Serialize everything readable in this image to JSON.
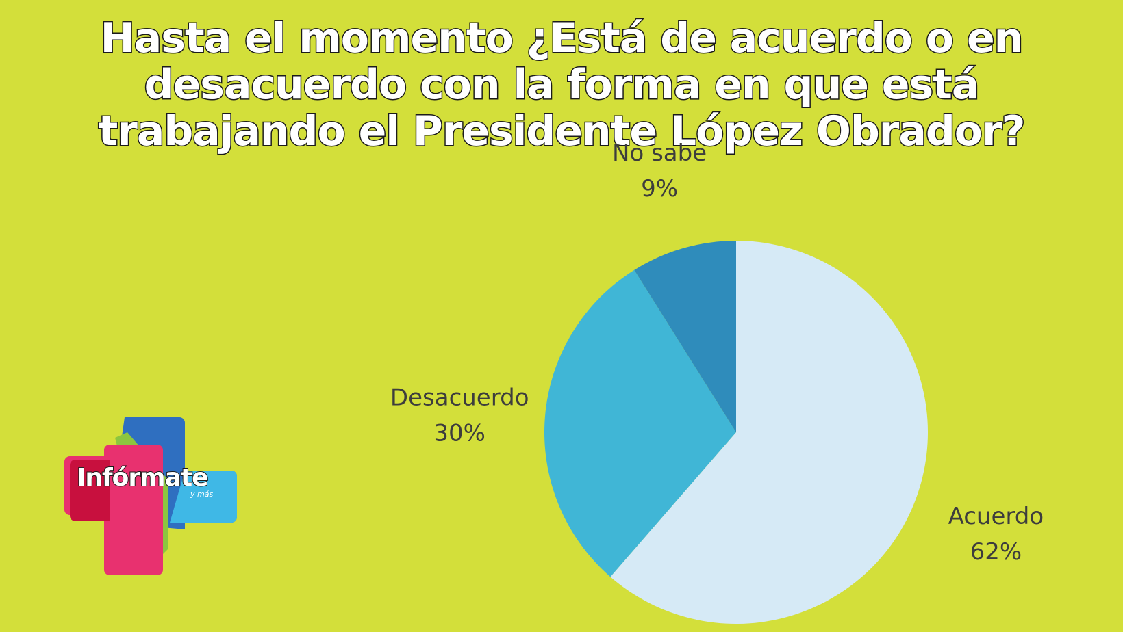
{
  "chart_data": {
    "type": "pie",
    "title": "Hasta el momento ¿Está de acuerdo o en desacuerdo con la forma en que está trabajando el Presidente López Obrador?",
    "slices": [
      {
        "label": "Acuerdo",
        "value": 62,
        "display": "62%",
        "color": "#d6eaf6"
      },
      {
        "label": "Desacuerdo",
        "value": 30,
        "display": "30%",
        "color": "#40b6d6"
      },
      {
        "label": "No sabe",
        "value": 9,
        "display": "9%",
        "color": "#2f8cbb"
      }
    ],
    "start_angle": "top",
    "direction": "clockwise"
  },
  "logo": {
    "text": "Infórmate",
    "subtext": "y más",
    "colors": {
      "magenta": "#e8316f",
      "blue": "#2a3f9a",
      "cyan": "#3fb3e3",
      "green": "#7ec242"
    }
  }
}
